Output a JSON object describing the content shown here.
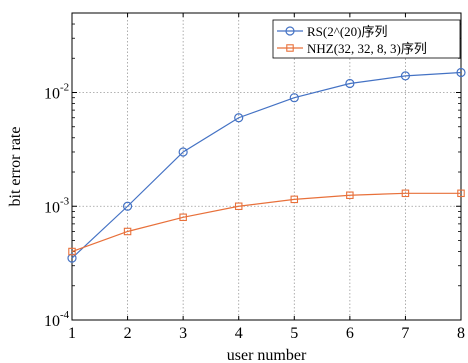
{
  "chart_data": {
    "type": "line",
    "title": "",
    "xlabel": "user number",
    "ylabel": "bit error rate",
    "x": [
      1,
      2,
      3,
      4,
      5,
      6,
      7,
      8
    ],
    "xlim": [
      1,
      8
    ],
    "ylim": [
      0.0001,
      0.05
    ],
    "yscale": "log",
    "x_ticks": [
      "1",
      "2",
      "3",
      "4",
      "5",
      "6",
      "7",
      "8"
    ],
    "y_ticks": [
      {
        "value": 0.0001,
        "base": "10",
        "exp": "-4"
      },
      {
        "value": 0.001,
        "base": "10",
        "exp": "-3"
      },
      {
        "value": 0.01,
        "base": "10",
        "exp": "-2"
      }
    ],
    "grid": true,
    "legend_position": "top-right",
    "series": [
      {
        "name": "RS(2^(20)序列",
        "color": "#4472c4",
        "marker": "circle",
        "values": [
          0.00035,
          0.001,
          0.003,
          0.006,
          0.009,
          0.012,
          0.014,
          0.015
        ]
      },
      {
        "name": "NHZ(32, 32, 8, 3)序列",
        "color": "#e8703a",
        "marker": "square",
        "values": [
          0.0004,
          0.0006,
          0.0008,
          0.001,
          0.00115,
          0.00125,
          0.0013,
          0.0013
        ]
      }
    ]
  }
}
